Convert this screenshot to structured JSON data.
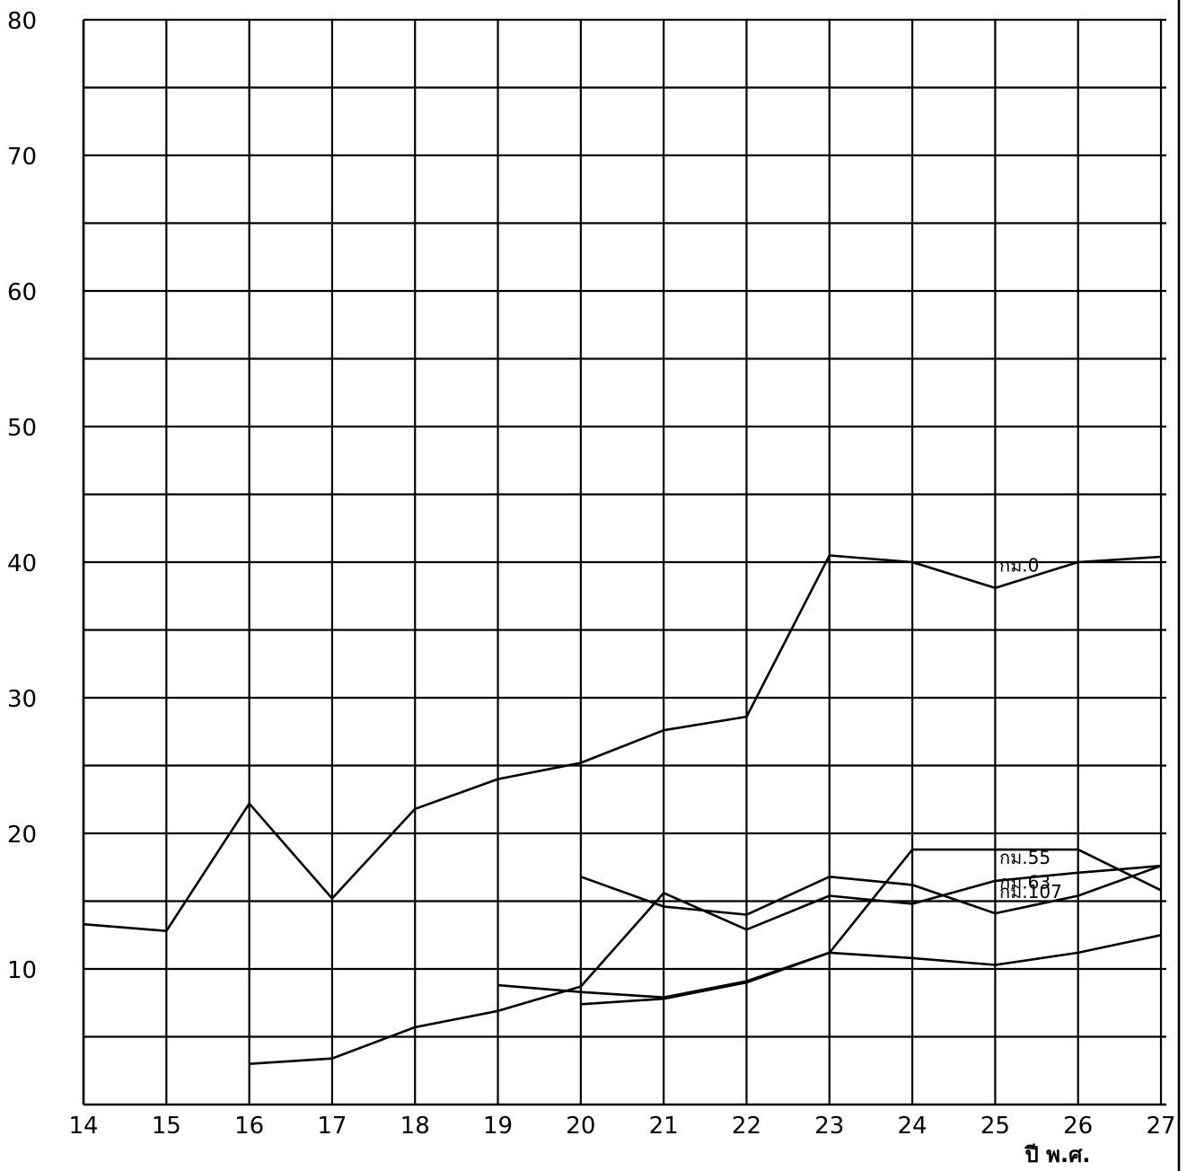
{
  "chart_data": {
    "type": "line",
    "title": "",
    "xlabel": "ปี พ.ศ.",
    "ylabel": "",
    "x": [
      14,
      15,
      16,
      17,
      18,
      19,
      20,
      21,
      22,
      23,
      24,
      25,
      26,
      27
    ],
    "x_tick_labels": [
      "14",
      "15",
      "16",
      "17",
      "18",
      "19",
      "20",
      "21",
      "22",
      "23",
      "24",
      "25",
      "26",
      "27"
    ],
    "y_tick_labels": [
      "80",
      "70",
      "60",
      "50",
      "40",
      "30",
      "20",
      "10"
    ],
    "y_tick_values": [
      80,
      70,
      60,
      50,
      40,
      30,
      20,
      10
    ],
    "xlim": [
      14,
      27
    ],
    "ylim": [
      0,
      80
    ],
    "grid": true,
    "series": [
      {
        "name": "กม.0",
        "points": [
          [
            14,
            13.3
          ],
          [
            15,
            12.8
          ],
          [
            16,
            22.2
          ],
          [
            17,
            15.2
          ],
          [
            18,
            21.8
          ],
          [
            19,
            24.0
          ],
          [
            20,
            25.2
          ],
          [
            21,
            27.6
          ],
          [
            22,
            28.6
          ],
          [
            23,
            40.5
          ],
          [
            24,
            40.0
          ],
          [
            25,
            38.1
          ],
          [
            26,
            40.0
          ],
          [
            27,
            40.4
          ]
        ]
      },
      {
        "name": "กม.63",
        "points": [
          [
            16,
            3.0
          ],
          [
            17,
            3.4
          ],
          [
            18,
            5.7
          ],
          [
            19,
            6.9
          ],
          [
            20,
            8.7
          ],
          [
            21,
            15.6
          ],
          [
            22,
            12.9
          ],
          [
            23,
            15.4
          ],
          [
            24,
            14.8
          ],
          [
            25,
            16.5
          ],
          [
            26,
            17.1
          ],
          [
            27,
            17.6
          ]
        ]
      },
      {
        "name": "กม.107",
        "points": [
          [
            20,
            16.8
          ],
          [
            21,
            14.6
          ],
          [
            22,
            14.0
          ],
          [
            23,
            16.8
          ],
          [
            24,
            16.2
          ],
          [
            25,
            14.1
          ],
          [
            26,
            15.4
          ],
          [
            27,
            17.6
          ]
        ]
      },
      {
        "name": "กม.55",
        "points": [
          [
            19,
            8.8
          ],
          [
            20,
            8.3
          ],
          [
            21,
            7.9
          ],
          [
            22,
            9.1
          ],
          [
            23,
            11.2
          ],
          [
            24,
            18.8
          ],
          [
            25,
            18.8
          ],
          [
            26,
            18.8
          ],
          [
            27,
            15.8
          ]
        ]
      },
      {
        "name": "",
        "points": [
          [
            20,
            7.4
          ],
          [
            21,
            7.8
          ],
          [
            22,
            9.0
          ],
          [
            23,
            11.2
          ],
          [
            24,
            10.8
          ],
          [
            25,
            10.3
          ],
          [
            26,
            11.2
          ],
          [
            27,
            12.5
          ]
        ]
      }
    ]
  }
}
